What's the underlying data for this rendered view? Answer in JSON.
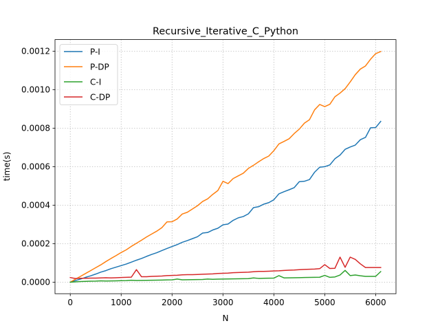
{
  "chart_data": {
    "type": "line",
    "title": "Recursive_Iterative_C_Python",
    "xlabel": "N",
    "ylabel": "time(s)",
    "xlim": [
      -300,
      6400
    ],
    "ylim": [
      -6e-05,
      0.00126
    ],
    "xticks": [
      0,
      1000,
      2000,
      3000,
      4000,
      5000,
      6000
    ],
    "xtick_labels": [
      "0",
      "1000",
      "2000",
      "3000",
      "4000",
      "5000",
      "6000"
    ],
    "yticks": [
      0,
      0.0002,
      0.0004,
      0.0006,
      0.0008,
      0.001,
      0.0012
    ],
    "ytick_labels": [
      "0.0000",
      "0.0002",
      "0.0004",
      "0.0006",
      "0.0008",
      "0.0010",
      "0.0012"
    ],
    "grid": true,
    "grid_style": "dotted",
    "legend_position": "top-left",
    "x": [
      0,
      100,
      200,
      300,
      400,
      500,
      600,
      700,
      800,
      900,
      1000,
      1100,
      1200,
      1300,
      1400,
      1500,
      1600,
      1700,
      1800,
      1900,
      2000,
      2100,
      2200,
      2300,
      2400,
      2500,
      2600,
      2700,
      2800,
      2900,
      3000,
      3100,
      3200,
      3300,
      3400,
      3500,
      3600,
      3700,
      3800,
      3900,
      4000,
      4100,
      4200,
      4300,
      4400,
      4500,
      4600,
      4700,
      4800,
      4900,
      5000,
      5100,
      5200,
      5300,
      5400,
      5500,
      5600,
      5700,
      5800,
      5900,
      6000,
      6100
    ],
    "series": [
      {
        "name": "P-I",
        "color": "#1f77b4",
        "values": [
          0.0,
          8e-06,
          1.6e-05,
          2.5e-05,
          3.3e-05,
          4.2e-05,
          5.2e-05,
          6e-05,
          7e-05,
          7.8e-05,
          8.6e-05,
          9.4e-05,
          0.000104,
          0.000114,
          0.000123,
          0.000134,
          0.000144,
          0.000153,
          0.000164,
          0.000175,
          0.000185,
          0.000195,
          0.000207,
          0.000216,
          0.000226,
          0.000236,
          0.000255,
          0.000258,
          0.000271,
          0.00028,
          0.000298,
          0.000302,
          0.000321,
          0.000334,
          0.000341,
          0.000355,
          0.000387,
          0.000392,
          0.000405,
          0.000413,
          0.000428,
          0.000459,
          0.00047,
          0.00048,
          0.000491,
          0.000522,
          0.000524,
          0.000533,
          0.000571,
          0.000597,
          0.0006,
          0.000609,
          0.000641,
          0.00066,
          0.00069,
          0.000702,
          0.000712,
          0.00074,
          0.000752,
          0.000802,
          0.000803,
          0.000835
        ]
      },
      {
        "name": "P-DP",
        "color": "#ff7f0e",
        "values": [
          0.0,
          1.5e-05,
          3e-05,
          4.5e-05,
          6e-05,
          7.5e-05,
          9e-05,
          0.000107,
          0.000123,
          0.000138,
          0.000154,
          0.000168,
          0.000186,
          0.000202,
          0.000218,
          0.000235,
          0.00025,
          0.000265,
          0.000283,
          0.000313,
          0.000314,
          0.000328,
          0.000354,
          0.000363,
          0.00038,
          0.000397,
          0.000419,
          0.000433,
          0.000456,
          0.000476,
          0.000524,
          0.000512,
          0.000538,
          0.000552,
          0.000566,
          0.000591,
          0.000607,
          0.000625,
          0.000642,
          0.000655,
          0.000683,
          0.000718,
          0.000731,
          0.000745,
          0.000772,
          0.000795,
          0.000826,
          0.000844,
          0.000895,
          0.000923,
          0.000912,
          0.000924,
          0.000963,
          0.000982,
          0.001005,
          0.00104,
          0.001078,
          0.001107,
          0.001123,
          0.001158,
          0.001187,
          0.001198
        ]
      },
      {
        "name": "C-I",
        "color": "#2ca02c",
        "values": [
          0.0,
          1.5e-06,
          3e-06,
          4e-06,
          5e-06,
          5.5e-06,
          7e-06,
          6e-06,
          6.5e-06,
          7e-06,
          7.5e-06,
          8e-06,
          1e-05,
          8.5e-06,
          9e-06,
          9.5e-06,
          1e-05,
          1.05e-05,
          1.1e-05,
          1.15e-05,
          1.2e-05,
          1.6e-05,
          1.2e-05,
          1.25e-05,
          1.3e-05,
          1.35e-05,
          1.4e-05,
          1.6e-05,
          1.5e-05,
          1.55e-05,
          1.6e-05,
          1.65e-05,
          1.7e-05,
          1.75e-05,
          1.8e-05,
          1.85e-05,
          2.2e-05,
          1.95e-05,
          2e-05,
          2.05e-05,
          2.1e-05,
          3.4e-05,
          2.2e-05,
          2.25e-05,
          2.3e-05,
          2.35e-05,
          2.4e-05,
          2.45e-05,
          2.5e-05,
          2.55e-05,
          3.5e-05,
          2.5e-05,
          2.7e-05,
          3.7e-05,
          6.1e-05,
          3.4e-05,
          3.7e-05,
          3.3e-05,
          3e-05,
          3e-05,
          3e-05,
          5.5e-05
        ]
      },
      {
        "name": "C-DP",
        "color": "#d62728",
        "values": [
          2.4e-05,
          1.9e-05,
          2e-05,
          2e-05,
          2.1e-05,
          2.1e-05,
          2.2e-05,
          2.3e-05,
          2.2e-05,
          2.3e-05,
          2.4e-05,
          2.5e-05,
          2.6e-05,
          6.5e-05,
          2.8e-05,
          2.8e-05,
          3e-05,
          3.1e-05,
          3.2e-05,
          3.4e-05,
          3.5e-05,
          3.6e-05,
          3.8e-05,
          3.9e-05,
          3.9e-05,
          4e-05,
          4.1e-05,
          4.2e-05,
          4.3e-05,
          4.5e-05,
          4.6e-05,
          4.7e-05,
          4.9e-05,
          5e-05,
          5.1e-05,
          5.2e-05,
          5.4e-05,
          5.6e-05,
          5.6e-05,
          5.7e-05,
          5.8e-05,
          5.9e-05,
          6.1e-05,
          6.2e-05,
          6.3e-05,
          6.5e-05,
          6.6e-05,
          6.7e-05,
          6.8e-05,
          7e-05,
          9.1e-05,
          7.1e-05,
          7.2e-05,
          0.00013,
          7.7e-05,
          0.00013,
          0.000118,
          9.5e-05,
          7.6e-05,
          7.6e-05,
          7.6e-05,
          7.6e-05
        ]
      }
    ]
  }
}
